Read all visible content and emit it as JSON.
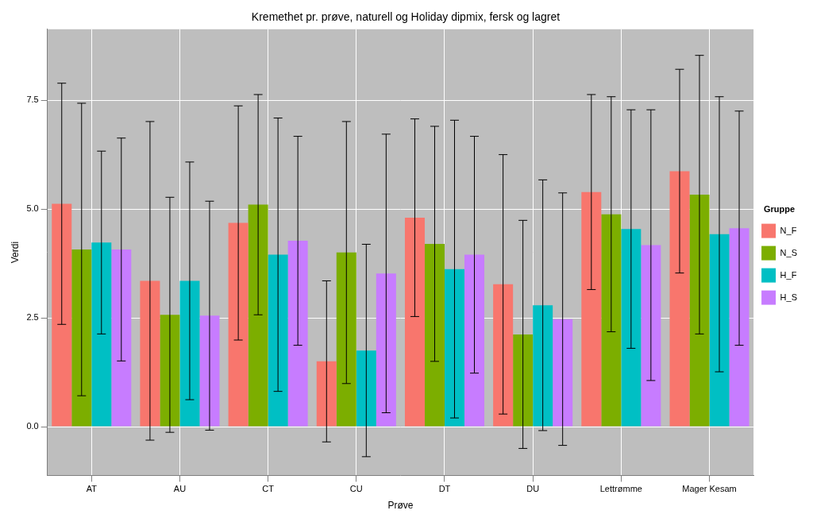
{
  "chart_data": {
    "type": "bar",
    "title": "Kremethet pr. prøve, naturell og Holiday dipmix, fersk og lagret",
    "x_label": "Prøve",
    "y_label": "Verdi",
    "legend_title": "Gruppe",
    "legend": "right",
    "grid": true,
    "categories": [
      "AT",
      "AU",
      "CT",
      "CU",
      "DT",
      "DU",
      "Lettrømme",
      "Mager Kesam"
    ],
    "series": [
      {
        "name": "N_F",
        "color": "#F8766D",
        "values": [
          5.12,
          3.35,
          4.68,
          1.5,
          4.8,
          3.27,
          5.39,
          5.87
        ],
        "errors": [
          2.77,
          3.66,
          2.69,
          1.85,
          2.27,
          2.98,
          2.24,
          2.34
        ]
      },
      {
        "name": "N_S",
        "color": "#7CAE00",
        "values": [
          4.07,
          2.57,
          5.1,
          4.0,
          4.2,
          2.12,
          4.88,
          5.33
        ],
        "errors": [
          3.36,
          2.7,
          2.53,
          3.01,
          2.7,
          2.62,
          2.7,
          3.2
        ]
      },
      {
        "name": "H_F",
        "color": "#00BFC4",
        "values": [
          4.23,
          3.35,
          3.95,
          1.75,
          3.62,
          2.79,
          4.54,
          4.42
        ],
        "errors": [
          2.1,
          2.73,
          3.14,
          2.44,
          3.42,
          2.88,
          2.74,
          3.16
        ]
      },
      {
        "name": "H_S",
        "color": "#C77CFF",
        "values": [
          4.07,
          2.55,
          4.27,
          3.52,
          3.95,
          2.47,
          4.17,
          4.56
        ],
        "errors": [
          2.56,
          2.63,
          2.4,
          3.2,
          2.72,
          2.9,
          3.11,
          2.69
        ]
      }
    ],
    "ylim": [
      -1.12,
      9.13
    ],
    "yticks": [
      {
        "value": 0,
        "label": "0.0"
      },
      {
        "value": 2.5,
        "label": "2.5"
      },
      {
        "value": 5,
        "label": "5.0"
      },
      {
        "value": 7.5,
        "label": "7.5"
      }
    ]
  }
}
